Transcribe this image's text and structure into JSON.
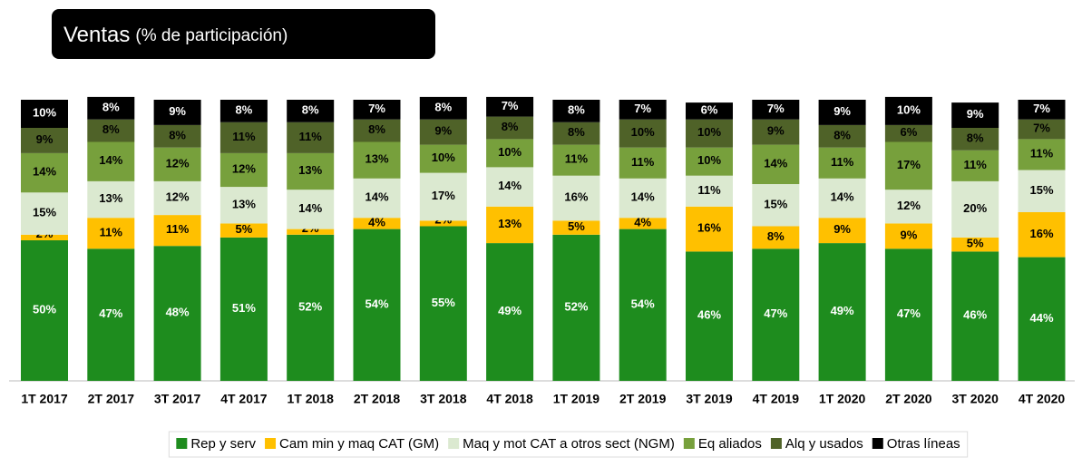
{
  "chart_data": {
    "type": "stacked_bar",
    "title": "Ventas",
    "subtitle": "(% de participación)",
    "categories": [
      "1T 2017",
      "2T 2017",
      "3T 2017",
      "4T 2017",
      "1T 2018",
      "2T 2018",
      "3T 2018",
      "4T 2018",
      "1T 2019",
      "2T 2019",
      "3T 2019",
      "4T 2019",
      "1T 2020",
      "2T 2020",
      "3T 2020",
      "4T 2020"
    ],
    "series": [
      {
        "name": "Rep y serv",
        "color": "#1e8c1e",
        "values": [
          50,
          47,
          48,
          51,
          52,
          54,
          55,
          49,
          52,
          54,
          46,
          47,
          49,
          47,
          46,
          44
        ]
      },
      {
        "name": "Cam min y maq CAT (GM)",
        "color": "#ffc000",
        "values": [
          2,
          11,
          11,
          5,
          2,
          4,
          2,
          13,
          5,
          4,
          16,
          8,
          9,
          9,
          5,
          16
        ]
      },
      {
        "name": "Maq y mot CAT a otros sect (NGM)",
        "color": "#dbe9d0",
        "values": [
          15,
          13,
          12,
          13,
          14,
          14,
          17,
          14,
          16,
          14,
          11,
          15,
          14,
          12,
          20,
          15
        ]
      },
      {
        "name": "Eq aliados",
        "color": "#77a03c",
        "values": [
          14,
          14,
          12,
          12,
          13,
          13,
          10,
          10,
          11,
          11,
          10,
          14,
          11,
          17,
          11,
          11
        ]
      },
      {
        "name": "Alq y usados",
        "color": "#4f6228",
        "values": [
          9,
          8,
          8,
          11,
          11,
          8,
          9,
          8,
          8,
          10,
          10,
          9,
          8,
          6,
          8,
          7
        ]
      },
      {
        "name": "Otras líneas",
        "color": "#000000",
        "values": [
          10,
          8,
          9,
          8,
          8,
          7,
          8,
          7,
          8,
          7,
          6,
          7,
          9,
          10,
          9,
          7
        ]
      }
    ]
  }
}
